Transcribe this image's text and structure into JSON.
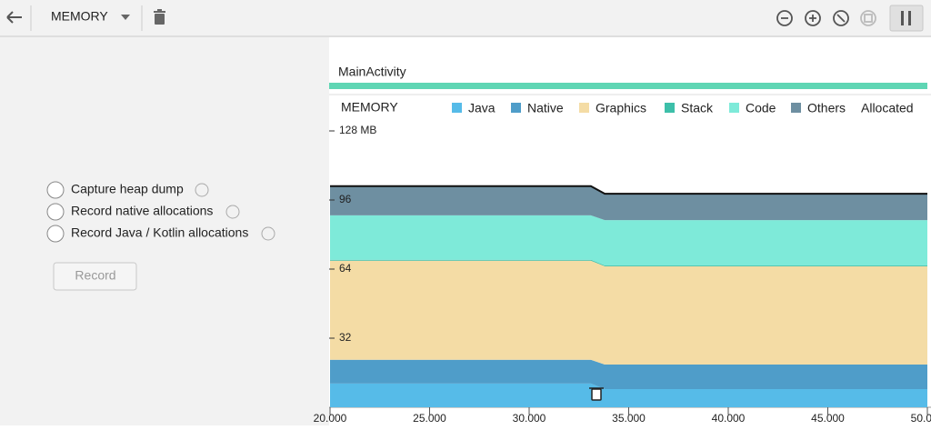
{
  "toolbar": {
    "profiler": "MEMORY"
  },
  "options": [
    "Capture heap dump",
    "Record native allocations",
    "Record Java / Kotlin allocations"
  ],
  "record_button": "Record",
  "activity": "MainActivity",
  "chart_data": {
    "type": "stacked-area",
    "title": "MEMORY",
    "x": [
      20,
      33.1,
      33.8,
      50
    ],
    "series": [
      {
        "name": "Java",
        "color": "#56bbe8",
        "values": [
          11,
          11,
          8.4,
          8.4
        ]
      },
      {
        "name": "Native",
        "color": "#4f9dc9",
        "values": [
          11,
          11,
          11.4,
          11.4
        ]
      },
      {
        "name": "Graphics",
        "color": "#f4dca5",
        "values": [
          45.9,
          45.9,
          45.5,
          45.5
        ]
      },
      {
        "name": "Stack",
        "color": "#3dbfa9",
        "values": [
          0.4,
          0.4,
          0.4,
          0.4
        ]
      },
      {
        "name": "Code",
        "color": "#7eead9",
        "values": [
          20.6,
          20.6,
          21,
          21
        ]
      },
      {
        "name": "Others",
        "color": "#6e8fa1",
        "values": [
          13.5,
          13.5,
          12.2,
          12.2
        ]
      }
    ],
    "allocated_label": "Allocated",
    "xlim": [
      20,
      50
    ],
    "ylim": [
      0,
      128
    ],
    "xticks": [
      {
        "value": 20,
        "label": "20.000"
      },
      {
        "value": 25,
        "label": "25.000"
      },
      {
        "value": 30,
        "label": "30.000"
      },
      {
        "value": 35,
        "label": "35.000"
      },
      {
        "value": 40,
        "label": "40.000"
      },
      {
        "value": 45,
        "label": "45.000"
      },
      {
        "value": 50,
        "label": "50.000"
      }
    ],
    "yticks": [
      32,
      64,
      96,
      {
        "value": 128,
        "label": "128 MB"
      }
    ]
  }
}
